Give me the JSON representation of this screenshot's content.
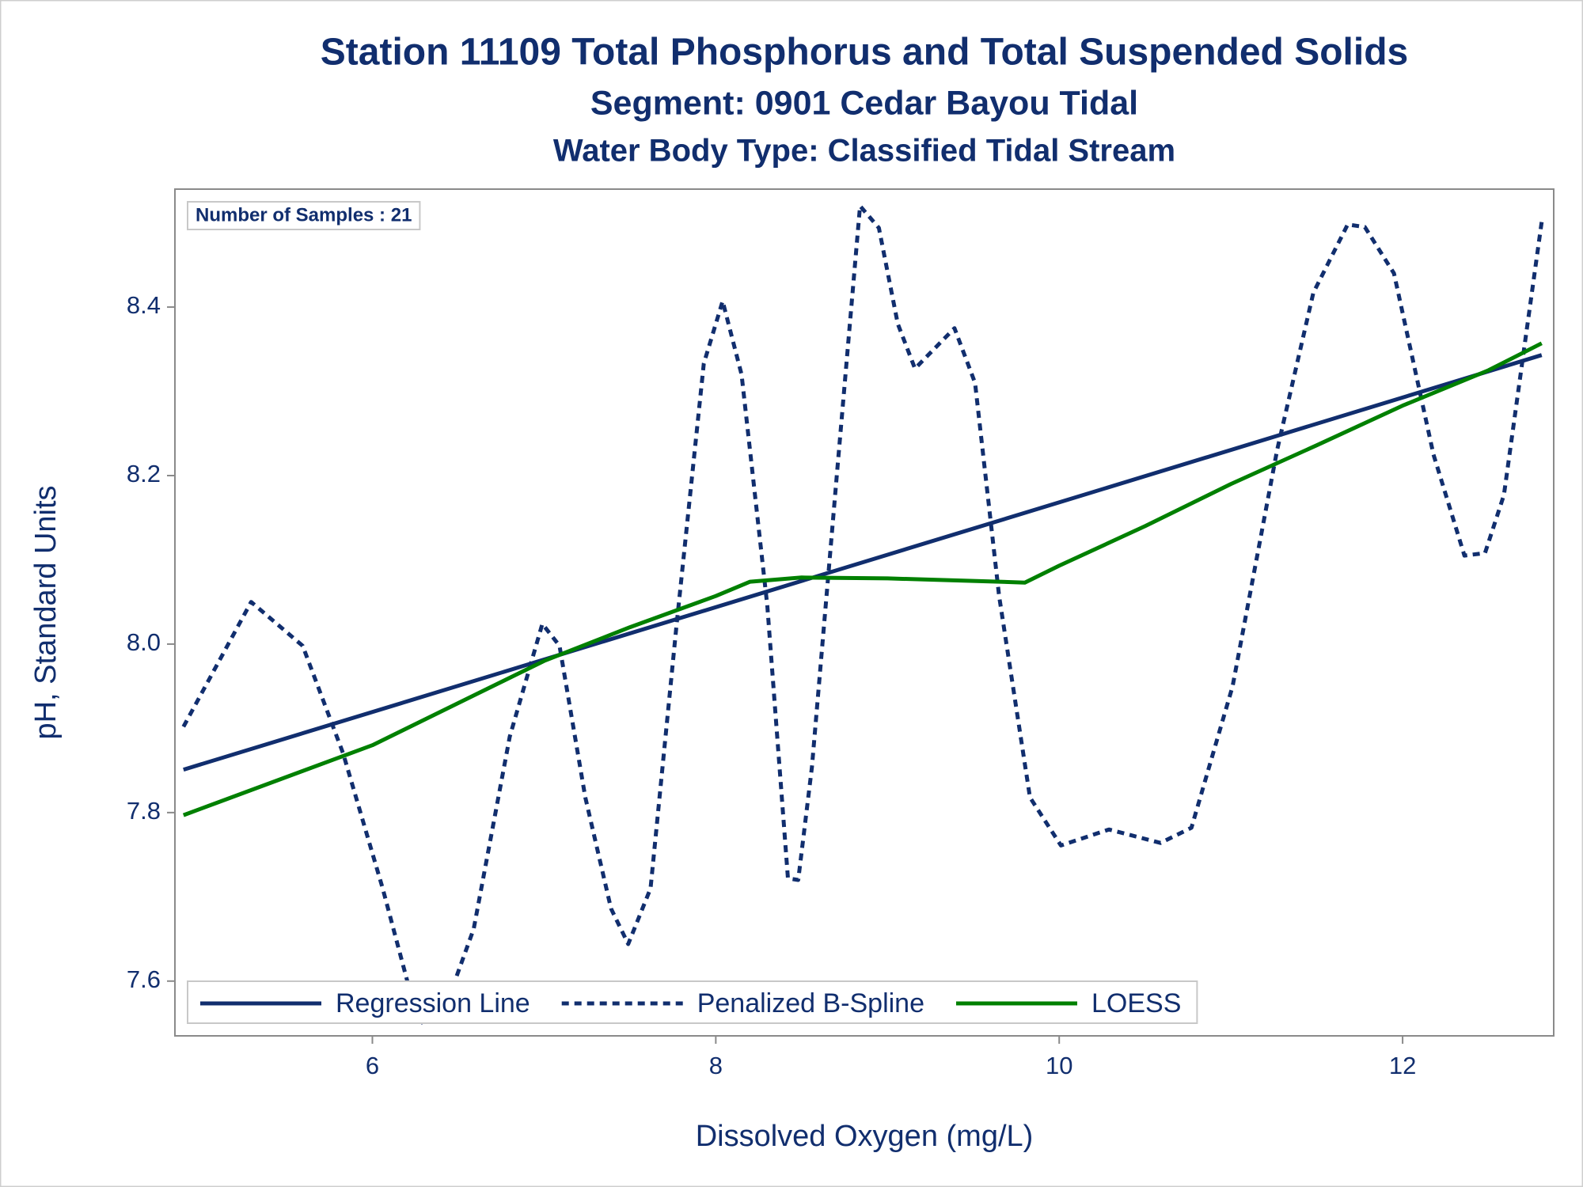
{
  "chart_data": {
    "type": "line",
    "title": "Station 11109  Total Phosphorus and Total Suspended Solids",
    "subtitle": "Segment: 0901  Cedar Bayou Tidal",
    "subtitle2": "Water Body Type: Classified Tidal Stream",
    "annotation": "Number of Samples : 21",
    "x_label": "Dissolved Oxygen (mg/L)",
    "y_label": "pH, Standard Units",
    "xlim": [
      4.85,
      12.88
    ],
    "ylim": [
      7.535,
      8.54
    ],
    "xticks": [
      6,
      8,
      10,
      12
    ],
    "yticks": [
      7.6,
      7.8,
      {
        "value": 8,
        "label": "8.0"
      },
      8.2,
      8.4
    ],
    "grid": false,
    "legend": "bottom-left",
    "series": [
      {
        "name": "Regression Line",
        "color": "#112e6e",
        "line_style": "solid",
        "x": [
          4.9,
          12.81
        ],
        "values": [
          7.851,
          8.343
        ]
      },
      {
        "name": "Penalized B-Spline",
        "color": "#112e6e",
        "line_style": "dashed",
        "x": [
          4.9,
          5.294,
          5.594,
          5.83,
          6.06,
          6.27,
          6.42,
          6.59,
          6.8,
          6.99,
          7.09,
          7.24,
          7.39,
          7.49,
          7.62,
          7.77,
          7.93,
          8.04,
          8.15,
          8.3,
          8.42,
          8.48,
          8.56,
          8.71,
          8.84,
          8.95,
          9.06,
          9.16,
          9.39,
          9.51,
          9.65,
          9.83,
          10.01,
          10.29,
          10.59,
          10.77,
          11.01,
          11.27,
          11.48,
          11.68,
          11.78,
          11.95,
          12.18,
          12.36,
          12.48,
          12.59,
          12.72,
          12.81
        ],
        "values": [
          7.902,
          8.05,
          7.998,
          7.87,
          7.71,
          7.549,
          7.566,
          7.662,
          7.89,
          8.024,
          7.998,
          7.818,
          7.686,
          7.644,
          7.71,
          8.02,
          8.333,
          8.407,
          8.32,
          8.046,
          7.722,
          7.72,
          7.854,
          8.213,
          8.52,
          8.494,
          8.38,
          8.327,
          8.375,
          8.31,
          8.057,
          7.818,
          7.761,
          7.78,
          7.764,
          7.782,
          7.95,
          8.231,
          8.417,
          8.498,
          8.495,
          8.44,
          8.225,
          8.105,
          8.108,
          8.177,
          8.369,
          8.501
        ]
      },
      {
        "name": "LOESS",
        "color": "#008000",
        "line_style": "solid",
        "x": [
          4.9,
          6,
          7,
          7.5,
          8,
          8.2,
          8.5,
          9,
          9.5,
          9.8,
          10,
          10.5,
          11,
          11.5,
          12,
          12.5,
          12.81
        ],
        "values": [
          7.797,
          7.88,
          7.98,
          8.02,
          8.057,
          8.074,
          8.079,
          8.078,
          8.075,
          8.073,
          8.093,
          8.14,
          8.19,
          8.236,
          8.283,
          8.325,
          8.357
        ]
      }
    ]
  }
}
